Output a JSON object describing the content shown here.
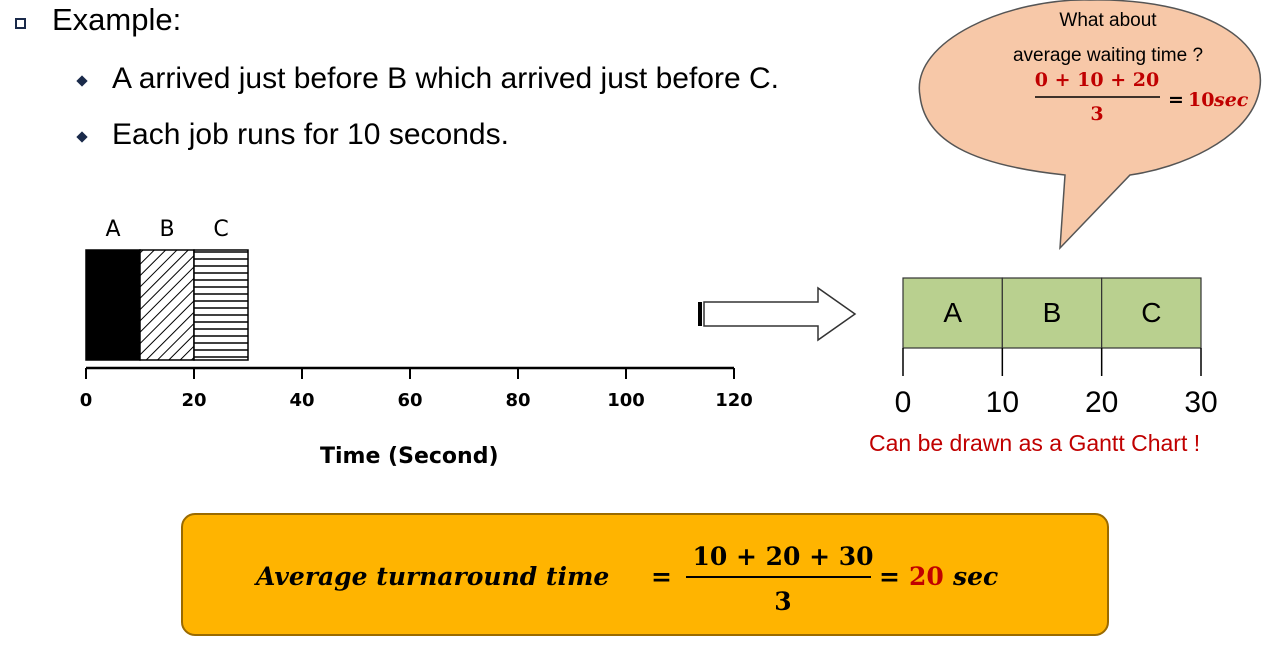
{
  "slide": {
    "heading": "Example:",
    "bullets": [
      "A arrived just before B which arrived just before C.",
      "Each job runs for 10 seconds."
    ]
  },
  "chart_data": {
    "type": "bar",
    "title": "",
    "xlabel": "Time (Second)",
    "ylabel": "",
    "xlim": [
      0,
      120
    ],
    "x_ticks": [
      "0",
      "20",
      "40",
      "60",
      "80",
      "100",
      "120"
    ],
    "series": [
      {
        "name": "A",
        "start": 0,
        "end": 10,
        "pattern": "solid-black"
      },
      {
        "name": "B",
        "start": 10,
        "end": 20,
        "pattern": "diagonal-hatch"
      },
      {
        "name": "C",
        "start": 20,
        "end": 30,
        "pattern": "horizontal-lines"
      }
    ]
  },
  "gantt": {
    "jobs": [
      {
        "label": "A",
        "start": 0,
        "end": 10
      },
      {
        "label": "B",
        "start": 10,
        "end": 20
      },
      {
        "label": "C",
        "start": 20,
        "end": 30
      }
    ],
    "ticks": [
      "0",
      "10",
      "20",
      "30"
    ],
    "caption": "Can be drawn as a Gantt Chart !",
    "fill_color": "#b9d08f",
    "caption_color": "#c00000"
  },
  "bubble": {
    "line1": "What about",
    "line2": "average waiting time ?",
    "numerator": "0 + 10 + 20",
    "denominator": "3",
    "equals": "=",
    "result_value": "10",
    "result_unit": "sec",
    "fill_color": "#f7c8a8",
    "result_color": "#c00000"
  },
  "formula": {
    "lhs": "Average turnaround time",
    "equals_1": "=",
    "numerator": "10 + 20 + 30",
    "denominator": "3",
    "equals_2": "=",
    "result_value": "20",
    "result_unit": "sec",
    "box_color": "#ffb400",
    "result_color": "#c00000"
  },
  "arrow_icon": "right-arrow-icon"
}
